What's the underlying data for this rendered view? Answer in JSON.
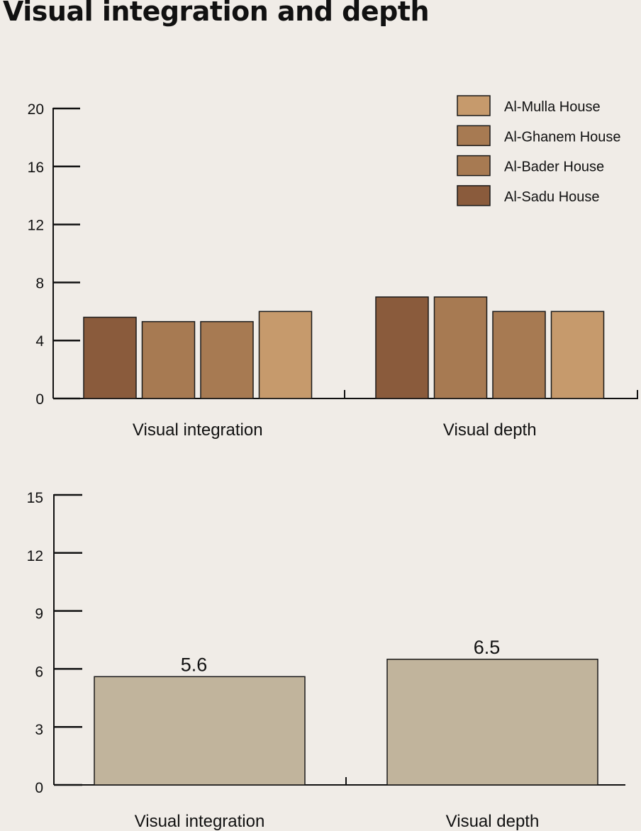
{
  "title": "Visual integration and depth",
  "chart_data": [
    {
      "type": "bar",
      "categories": [
        "Visual integration",
        "Visual depth"
      ],
      "series": [
        {
          "name": "Al-Sadu House",
          "values": [
            5.6,
            7.0
          ],
          "color": "#8a5b3c"
        },
        {
          "name": "Al-Bader House",
          "values": [
            5.3,
            7.0
          ],
          "color": "#a77a52"
        },
        {
          "name": "Al-Ghanem House",
          "values": [
            5.3,
            6.0
          ],
          "color": "#a77a52"
        },
        {
          "name": "Al-Mulla House",
          "values": [
            6.0,
            6.0
          ],
          "color": "#c69a6c"
        }
      ],
      "legend": [
        "Al-Mulla House",
        "Al-Ghanem House",
        "Al-Bader House",
        "Al-Sadu House"
      ],
      "legend_position": "top-right",
      "ylim": [
        0,
        20
      ],
      "yticks": [
        "0",
        "4",
        "8",
        "12",
        "16",
        "20"
      ],
      "grid": false
    },
    {
      "type": "bar",
      "categories": [
        "Visual integration",
        "Visual depth"
      ],
      "values": [
        5.6,
        6.5
      ],
      "data_labels": [
        "5.6",
        "6.5"
      ],
      "color": "#c1b49c",
      "ylim": [
        0,
        15
      ],
      "yticks": [
        "0",
        "3",
        "6",
        "9",
        "12",
        "15"
      ],
      "grid": false
    }
  ]
}
